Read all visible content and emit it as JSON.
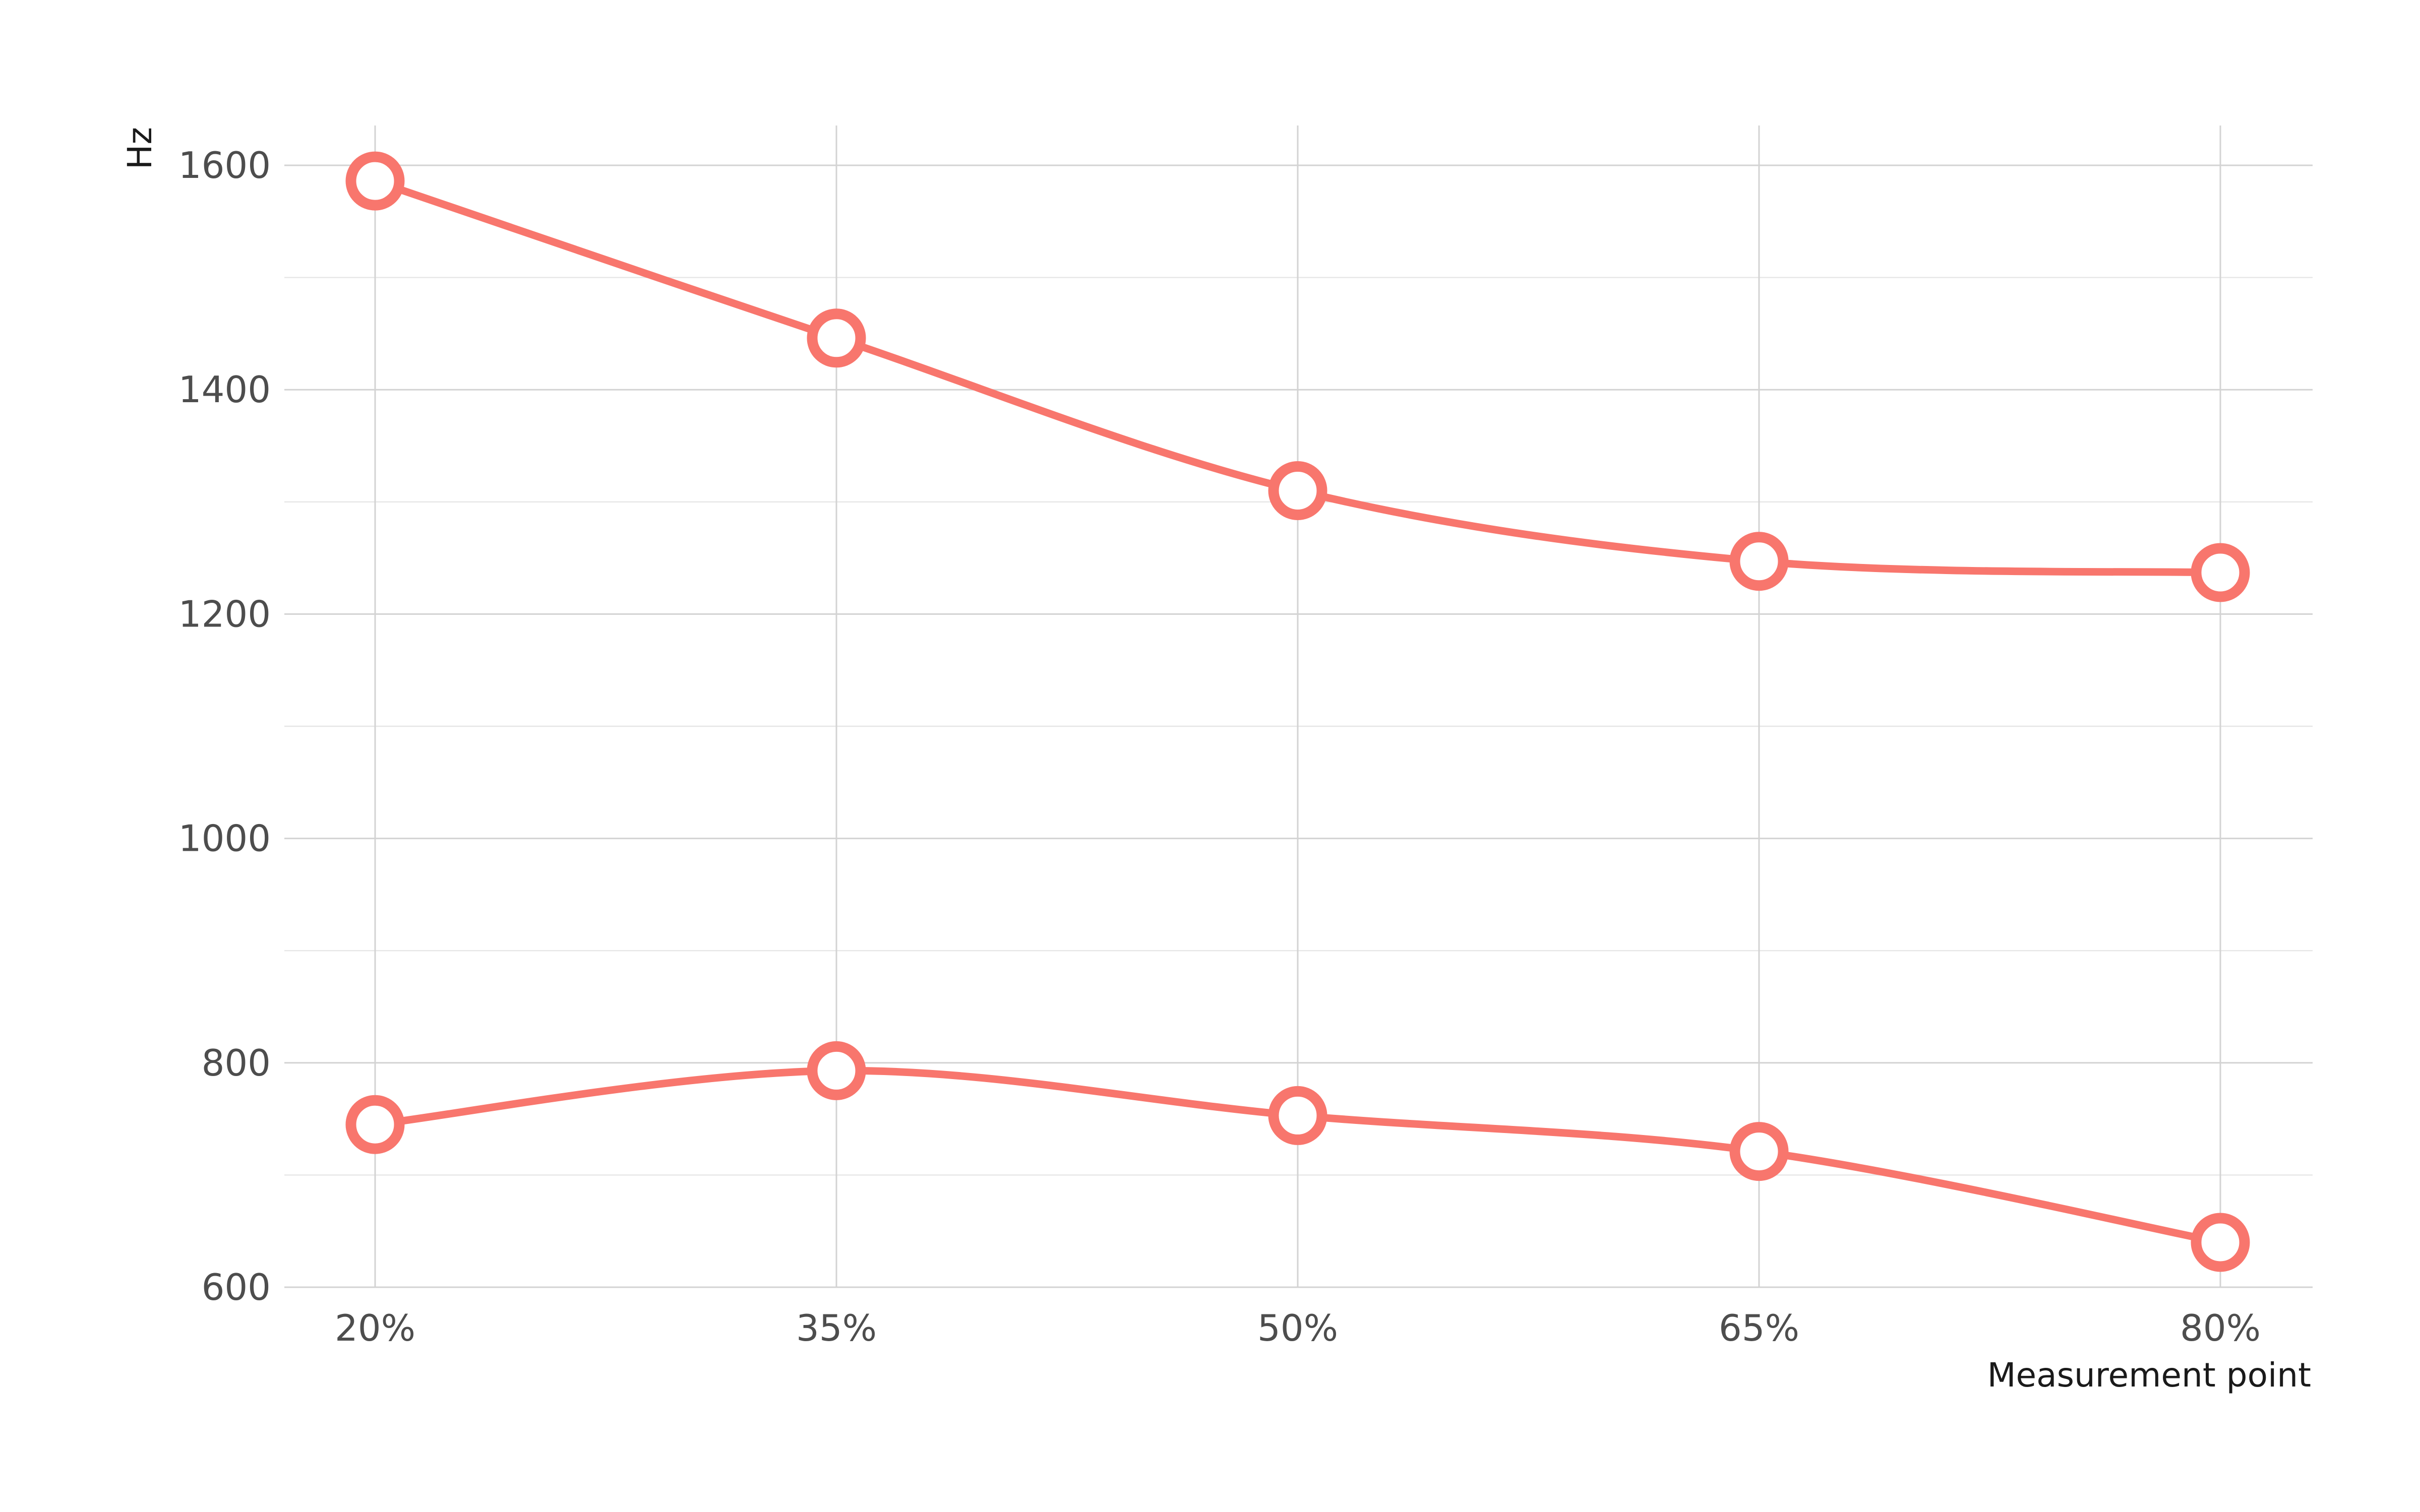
{
  "chart_data": {
    "type": "line",
    "title": "",
    "xlabel": "Measurement point",
    "ylabel": "Hz",
    "categories": [
      "20%",
      "35%",
      "50%",
      "65%",
      "80%"
    ],
    "y_ticks": [
      "600",
      "800",
      "1000",
      "1200",
      "1400",
      "1600"
    ],
    "ylim": [
      600,
      1630
    ],
    "grid": true,
    "legend": "none",
    "color": "#f8766d",
    "marker": "open-circle",
    "smoothed": true,
    "series": [
      {
        "values": [
          1586,
          1446,
          1310,
          1247,
          1237
        ]
      },
      {
        "values": [
          745,
          793,
          753,
          721,
          640
        ]
      }
    ]
  }
}
